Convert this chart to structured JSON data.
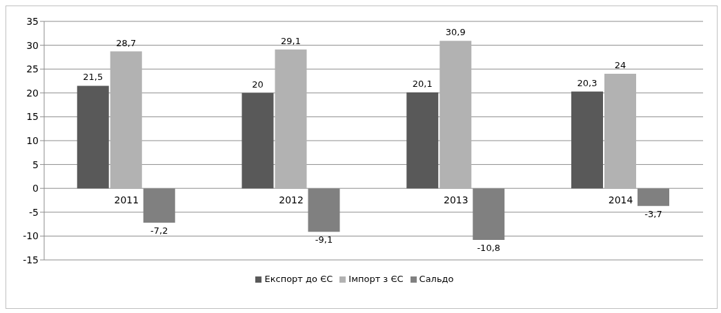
{
  "chart_data": {
    "type": "bar",
    "categories": [
      "2011",
      "2012",
      "2013",
      "2014"
    ],
    "series": [
      {
        "name": "Експорт до ЄС",
        "color": "#595959",
        "values": [
          21.5,
          20,
          20.1,
          20.3
        ],
        "value_labels": [
          "21,5",
          "20",
          "20,1",
          "20,3"
        ]
      },
      {
        "name": "Імпорт з ЄС",
        "color": "#b2b2b2",
        "values": [
          28.7,
          29.1,
          30.9,
          24
        ],
        "value_labels": [
          "28,7",
          "29,1",
          "30,9",
          "24"
        ]
      },
      {
        "name": "Сальдо",
        "color": "#808080",
        "values": [
          -7.2,
          -9.1,
          -10.8,
          -3.7
        ],
        "value_labels": [
          "-7,2",
          "-9,1",
          "-10,8",
          "-3,7"
        ]
      }
    ],
    "ylim": [
      -15,
      35
    ],
    "yticks": [
      -15,
      -10,
      -5,
      0,
      5,
      10,
      15,
      20,
      25,
      30,
      35
    ],
    "grid": "y",
    "legend": "bottom"
  }
}
